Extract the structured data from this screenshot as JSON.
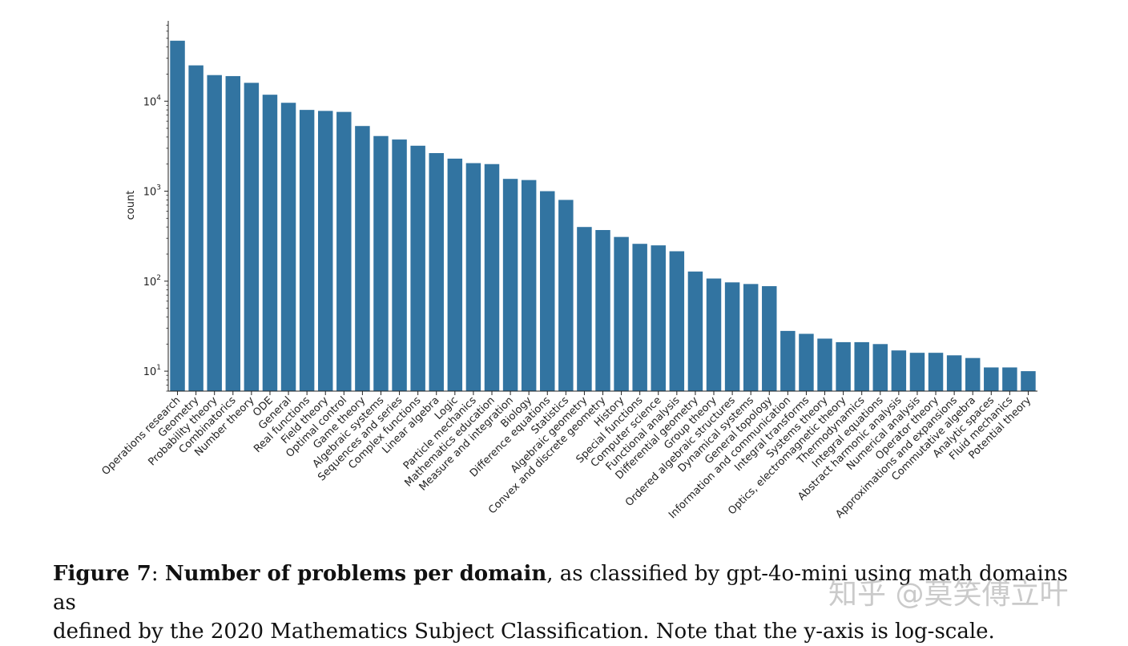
{
  "chart_data": {
    "type": "bar",
    "yscale": "log",
    "ylabel": "count",
    "xlabel": "",
    "ylim": [
      6,
      75000
    ],
    "yticks": [
      10,
      100,
      1000,
      10000
    ],
    "ytick_labels": [
      {
        "base": "10",
        "exp": "1"
      },
      {
        "base": "10",
        "exp": "2"
      },
      {
        "base": "10",
        "exp": "3"
      },
      {
        "base": "10",
        "exp": "4"
      }
    ],
    "bar_color": "#3274a1",
    "categories": [
      "Operations research",
      "Geometry",
      "Probability theory",
      "Combinatorics",
      "Number theory",
      "ODE",
      "General",
      "Real functions",
      "Field theory",
      "Optimal control",
      "Game theory",
      "Algebraic systems",
      "Sequences and series",
      "Complex functions",
      "Linear algebra",
      "Logic",
      "Particle mechanics",
      "Mathematics education",
      "Measure and integration",
      "Biology",
      "Difference equations",
      "Statistics",
      "Algebraic geometry",
      "Convex and discrete geometry",
      "History",
      "Special functions",
      "Computer science",
      "Functional analysis",
      "Differential geometry",
      "Group theory",
      "Ordered algebraic structures",
      "Dynamical systems",
      "General topology",
      "Information and communication",
      "Integral transforms",
      "Systems theory",
      "Optics, electromagnetic theory",
      "Thermodynamics",
      "Integral equations",
      "Abstract harmonic analysis",
      "Numerical analysis",
      "Operator theory",
      "Approximations and expansions",
      "Commutative algebra",
      "Analytic spaces",
      "Fluid mechanics",
      "Potential theory"
    ],
    "values": [
      47000,
      25000,
      19500,
      19000,
      16000,
      11800,
      9600,
      8000,
      7800,
      7600,
      5300,
      4100,
      3750,
      3200,
      2650,
      2300,
      2050,
      2000,
      1370,
      1330,
      1000,
      800,
      400,
      370,
      310,
      260,
      250,
      215,
      128,
      107,
      97,
      93,
      88,
      28,
      26,
      23,
      21,
      21,
      20,
      17,
      16,
      16,
      15,
      14,
      11,
      11,
      10
    ]
  },
  "caption": {
    "figure_label": "Figure 7",
    "colon": ": ",
    "bold_title": "Number of problems per domain",
    "rest_line1": ", as classified by gpt-4o-mini using math domains as",
    "line2": "defined by the 2020 Mathematics Subject Classification. Note that the y-axis is log-scale."
  },
  "watermark": "知乎 @莫笑傅立叶"
}
